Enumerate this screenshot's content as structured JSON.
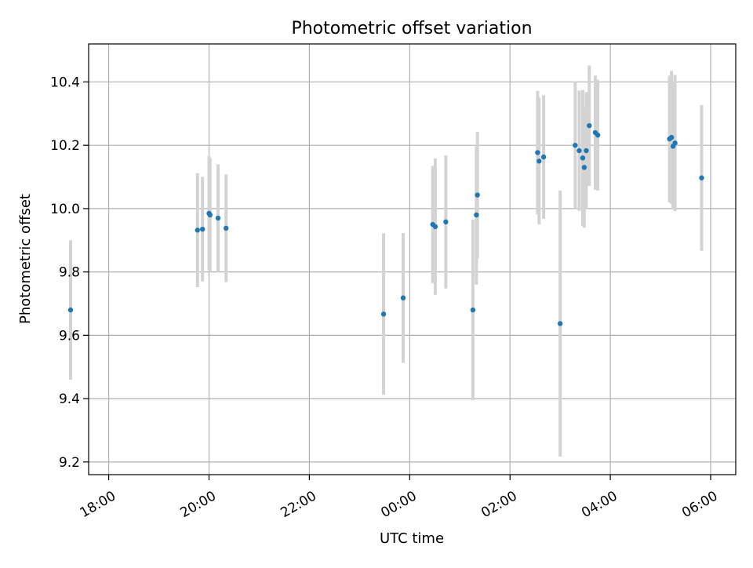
{
  "chart_data": {
    "type": "scatter",
    "title": "Photometric offset variation",
    "xlabel": "UTC time",
    "ylabel": "Photometric offset",
    "x_unit": "hours relative to 00:00 UTC",
    "xlim": [
      -6.4,
      6.5
    ],
    "ylim": [
      9.16,
      10.52
    ],
    "grid": true,
    "x_ticks": [
      {
        "value": -6,
        "label": "18:00"
      },
      {
        "value": -4,
        "label": "20:00"
      },
      {
        "value": -2,
        "label": "22:00"
      },
      {
        "value": 0,
        "label": "00:00"
      },
      {
        "value": 2,
        "label": "02:00"
      },
      {
        "value": 4,
        "label": "04:00"
      },
      {
        "value": 6,
        "label": "06:00"
      }
    ],
    "y_ticks": [
      {
        "value": 9.2,
        "label": "9.2"
      },
      {
        "value": 9.4,
        "label": "9.4"
      },
      {
        "value": 9.6,
        "label": "9.6"
      },
      {
        "value": 9.8,
        "label": "9.8"
      },
      {
        "value": 10.0,
        "label": "10.0"
      },
      {
        "value": 10.2,
        "label": "10.2"
      },
      {
        "value": 10.4,
        "label": "10.4"
      }
    ],
    "colors": {
      "point": "#1f77b4",
      "errorbar": "#d3d3d3",
      "grid": "#b0b0b0",
      "axes": "#000000"
    },
    "points": [
      {
        "x": -6.76,
        "y": 9.68,
        "err": 0.22
      },
      {
        "x": -4.23,
        "y": 9.932,
        "err": 0.18
      },
      {
        "x": -4.13,
        "y": 9.935,
        "err": 0.165
      },
      {
        "x": -4.0,
        "y": 9.985,
        "err": 0.18
      },
      {
        "x": -3.98,
        "y": 9.98,
        "err": 0.18
      },
      {
        "x": -3.82,
        "y": 9.97,
        "err": 0.17
      },
      {
        "x": -3.66,
        "y": 9.938,
        "err": 0.17
      },
      {
        "x": -0.52,
        "y": 9.667,
        "err": 0.255
      },
      {
        "x": -0.13,
        "y": 9.718,
        "err": 0.205
      },
      {
        "x": 0.46,
        "y": 9.95,
        "err": 0.185
      },
      {
        "x": 0.51,
        "y": 9.943,
        "err": 0.215
      },
      {
        "x": 0.72,
        "y": 9.958,
        "err": 0.21
      },
      {
        "x": 1.26,
        "y": 9.68,
        "err": 0.285
      },
      {
        "x": 1.33,
        "y": 9.98,
        "err": 0.22
      },
      {
        "x": 1.35,
        "y": 10.043,
        "err": 0.2
      },
      {
        "x": 2.55,
        "y": 10.177,
        "err": 0.195
      },
      {
        "x": 2.58,
        "y": 10.15,
        "err": 0.2
      },
      {
        "x": 2.67,
        "y": 10.163,
        "err": 0.195
      },
      {
        "x": 3.0,
        "y": 9.637,
        "err": 0.42
      },
      {
        "x": 3.3,
        "y": 10.2,
        "err": 0.2
      },
      {
        "x": 3.38,
        "y": 10.183,
        "err": 0.19
      },
      {
        "x": 3.45,
        "y": 10.16,
        "err": 0.215
      },
      {
        "x": 3.48,
        "y": 10.13,
        "err": 0.19
      },
      {
        "x": 3.52,
        "y": 10.183,
        "err": 0.185
      },
      {
        "x": 3.58,
        "y": 10.262,
        "err": 0.19
      },
      {
        "x": 3.7,
        "y": 10.24,
        "err": 0.18
      },
      {
        "x": 3.75,
        "y": 10.232,
        "err": 0.175
      },
      {
        "x": 5.18,
        "y": 10.22,
        "err": 0.2
      },
      {
        "x": 5.22,
        "y": 10.225,
        "err": 0.21
      },
      {
        "x": 5.25,
        "y": 10.197,
        "err": 0.2
      },
      {
        "x": 5.29,
        "y": 10.207,
        "err": 0.215
      },
      {
        "x": 5.82,
        "y": 10.097,
        "err": 0.23
      }
    ]
  }
}
